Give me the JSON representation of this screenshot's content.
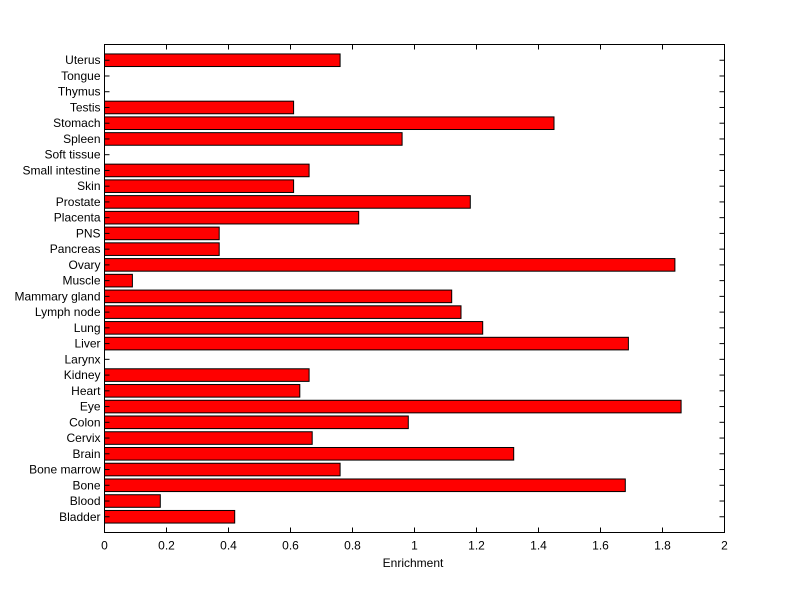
{
  "chart_data": {
    "type": "bar",
    "orientation": "horizontal",
    "xlabel": "Enrichment",
    "ylabel": "",
    "title": "",
    "xlim": [
      0,
      2
    ],
    "xticks": [
      "0",
      "0.2",
      "0.4",
      "0.6",
      "0.8",
      "1",
      "1.2",
      "1.4",
      "1.6",
      "1.8",
      "2"
    ],
    "grid": false,
    "colors": {
      "bar_fill": "#ff0000",
      "bar_edge": "#000000"
    },
    "categories": [
      "Bladder",
      "Blood",
      "Bone",
      "Bone marrow",
      "Brain",
      "Cervix",
      "Colon",
      "Eye",
      "Heart",
      "Kidney",
      "Larynx",
      "Liver",
      "Lung",
      "Lymph node",
      "Mammary gland",
      "Muscle",
      "Ovary",
      "Pancreas",
      "PNS",
      "Placenta",
      "Prostate",
      "Skin",
      "Small intestine",
      "Soft tissue",
      "Spleen",
      "Stomach",
      "Testis",
      "Thymus",
      "Tongue",
      "Uterus"
    ],
    "values": [
      0.42,
      0.18,
      1.68,
      0.76,
      1.32,
      0.67,
      0.98,
      1.86,
      0.63,
      0.66,
      0,
      1.69,
      1.22,
      1.15,
      1.12,
      0.09,
      1.84,
      0.37,
      0.37,
      0.82,
      1.18,
      0.61,
      0.66,
      0,
      0.96,
      1.45,
      0.61,
      0,
      0,
      0.76
    ]
  }
}
